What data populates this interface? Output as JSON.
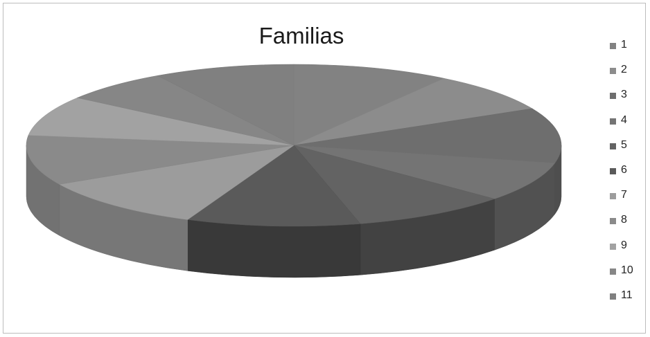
{
  "chart_data": {
    "type": "pie",
    "title": "Familias",
    "categories": [
      "1",
      "2",
      "3",
      "4",
      "5",
      "6",
      "7",
      "8",
      "9",
      "10",
      "11"
    ],
    "values": [
      9.5,
      8.0,
      11.0,
      8.0,
      9.5,
      10.5,
      10.5,
      10.0,
      8.0,
      6.5,
      8.5
    ],
    "colors": [
      "#828282",
      "#8c8c8c",
      "#6e6e6e",
      "#747474",
      "#636363",
      "#5a5a5a",
      "#9c9c9c",
      "#8a8a8a",
      "#a2a2a2",
      "#868686",
      "#808080"
    ],
    "legend_position": "right",
    "style": "3d-pie"
  }
}
